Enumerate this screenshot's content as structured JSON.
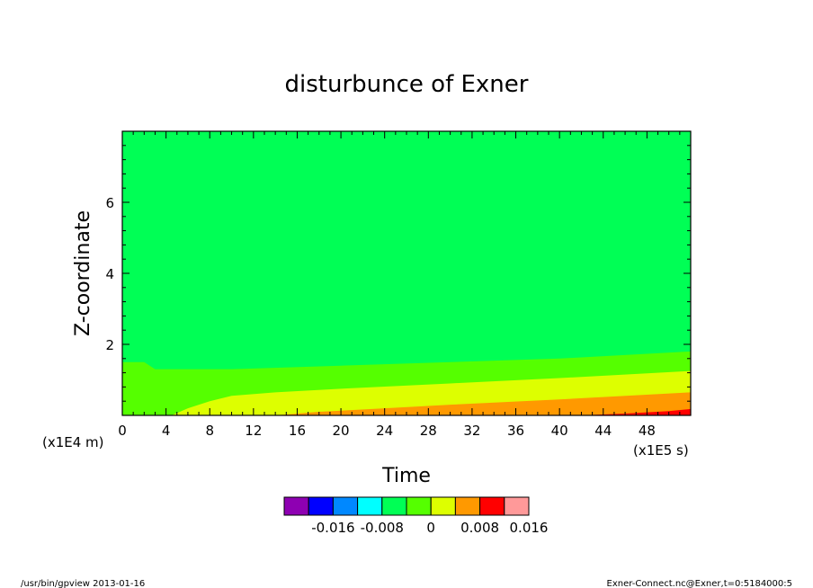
{
  "chart_data": {
    "type": "heatmap",
    "title": "disturbunce of Exner",
    "xlabel": "Time",
    "ylabel": "Z-coordinate",
    "x_scale_label": "(x1E5 s)",
    "y_scale_label": "(x1E4 m)",
    "xlim": [
      0,
      52
    ],
    "ylim": [
      0,
      8
    ],
    "x_ticks": [
      "0",
      "4",
      "8",
      "12",
      "16",
      "20",
      "24",
      "28",
      "32",
      "36",
      "40",
      "44",
      "48"
    ],
    "y_ticks": [
      "2",
      "4",
      "6"
    ],
    "colorbar": {
      "colors": [
        "#8e00b2",
        "#0000ff",
        "#0088ff",
        "#00ffff",
        "#00ff55",
        "#55ff00",
        "#ddff00",
        "#ff9900",
        "#ff0000",
        "#ff9999"
      ],
      "tick_labels": [
        "-0.016",
        "-0.008",
        "0",
        "0.008",
        "0.016"
      ]
    },
    "bands": [
      {
        "color": "#55ff00",
        "boundary": [
          [
            0,
            1.5
          ],
          [
            2,
            1.5
          ],
          [
            3,
            1.3
          ],
          [
            10,
            1.3
          ],
          [
            20,
            1.4
          ],
          [
            30,
            1.5
          ],
          [
            40,
            1.6
          ],
          [
            52,
            1.8
          ]
        ]
      },
      {
        "color": "#ddff00",
        "boundary": [
          [
            4.5,
            0
          ],
          [
            6,
            0.2
          ],
          [
            8,
            0.4
          ],
          [
            10,
            0.55
          ],
          [
            14,
            0.65
          ],
          [
            20,
            0.75
          ],
          [
            30,
            0.9
          ],
          [
            40,
            1.05
          ],
          [
            52,
            1.25
          ]
        ]
      },
      {
        "color": "#ff9900",
        "boundary": [
          [
            14,
            0
          ],
          [
            18,
            0.1
          ],
          [
            24,
            0.2
          ],
          [
            30,
            0.3
          ],
          [
            40,
            0.45
          ],
          [
            52,
            0.65
          ]
        ]
      },
      {
        "color": "#ff0000",
        "boundary": [
          [
            42,
            0
          ],
          [
            46,
            0.05
          ],
          [
            50,
            0.12
          ],
          [
            52,
            0.18
          ]
        ]
      }
    ],
    "background_color": "#00ff55"
  },
  "footer": {
    "left": "/usr/bin/gpview   2013-01-16",
    "right": "Exner-Connect.nc@Exner,t=0:5184000:5"
  }
}
